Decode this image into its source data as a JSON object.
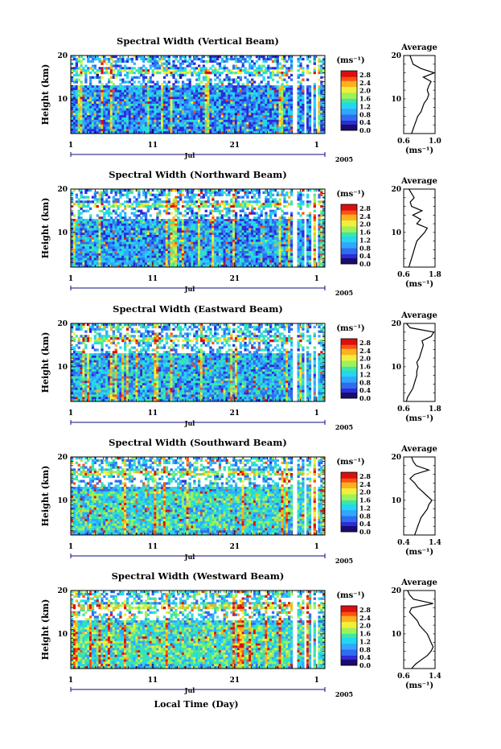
{
  "chart_data": {
    "type": "heatmap",
    "shared": {
      "x_tick_labels": [
        "1",
        "11",
        "21",
        "1"
      ],
      "x_tick_days": [
        1,
        11,
        21,
        31
      ],
      "x_range_days": [
        1,
        32
      ],
      "month_label": "Jul",
      "year_label": "2005",
      "xlabel": "Local Time (Day)",
      "ylabel": "Height (km)",
      "ylim": [
        2,
        20
      ],
      "y_tick_labels": [
        "10",
        "20"
      ],
      "y_ticks": [
        10,
        20
      ],
      "colorbar_unit": "(ms⁻¹)",
      "colorbar_ticks": [
        "0.0",
        "0.4",
        "0.8",
        "1.2",
        "1.6",
        "2.0",
        "2.4",
        "2.8"
      ],
      "colorbar_range": [
        0,
        3.0
      ],
      "colormap": [
        "#1a0a6e",
        "#2b2bd8",
        "#2f6cf0",
        "#33a6ff",
        "#22d8f0",
        "#3fe7a0",
        "#9cf25a",
        "#f0f03a",
        "#ffb020",
        "#ff5010",
        "#d81010"
      ],
      "profile_title": "Average",
      "profile_unit": "(ms⁻¹)",
      "data_gaps_days": [
        [
          28.0,
          28.7
        ],
        [
          29.55,
          29.8
        ],
        [
          30.35,
          30.55
        ],
        [
          30.9,
          31.1
        ]
      ]
    },
    "panels": [
      {
        "title": "Spectral Width (Vertical Beam)",
        "profile_xlim": [
          0.6,
          1.0
        ],
        "profile_tick_labels": [
          "0.6",
          "1.0"
        ],
        "profile_heights": [
          2,
          3,
          4,
          5,
          6,
          7,
          8,
          9,
          10,
          11,
          12,
          13,
          14,
          15,
          16,
          17,
          18,
          19,
          20
        ],
        "profile_values": [
          0.7,
          0.72,
          0.74,
          0.76,
          0.78,
          0.82,
          0.84,
          0.86,
          0.9,
          0.92,
          0.9,
          0.92,
          0.95,
          0.85,
          0.99,
          0.82,
          0.72,
          0.7,
          0.68
        ]
      },
      {
        "title": "Spectral Width (Northward Beam)",
        "profile_xlim": [
          0.6,
          1.8
        ],
        "profile_tick_labels": [
          "0.6",
          "1.8"
        ],
        "profile_heights": [
          2,
          3,
          4,
          5,
          6,
          7,
          8,
          9,
          10,
          11,
          12,
          13,
          14,
          15,
          16,
          17,
          18,
          19,
          20
        ],
        "profile_values": [
          0.8,
          0.85,
          0.9,
          0.95,
          1.0,
          1.05,
          1.1,
          1.25,
          1.4,
          1.5,
          1.1,
          1.25,
          0.95,
          1.3,
          0.9,
          0.85,
          1.0,
          0.9,
          0.8
        ]
      },
      {
        "title": "Spectral Width (Eastward Beam)",
        "profile_xlim": [
          0.6,
          1.8
        ],
        "profile_tick_labels": [
          "0.6",
          "1.8"
        ],
        "profile_heights": [
          2,
          3,
          4,
          5,
          6,
          7,
          8,
          9,
          10,
          11,
          12,
          13,
          14,
          15,
          16,
          17,
          18,
          19,
          20
        ],
        "profile_values": [
          0.7,
          0.75,
          0.85,
          0.95,
          1.0,
          1.05,
          1.1,
          1.1,
          1.15,
          1.1,
          1.2,
          1.25,
          1.3,
          1.35,
          1.3,
          1.65,
          1.75,
          0.85,
          0.7
        ]
      },
      {
        "title": "Spectral Width (Southward Beam)",
        "profile_xlim": [
          0.4,
          1.4
        ],
        "profile_tick_labels": [
          "0.4",
          "1.4"
        ],
        "profile_heights": [
          2,
          3,
          4,
          5,
          6,
          7,
          8,
          9,
          10,
          11,
          12,
          13,
          14,
          15,
          16,
          17,
          18,
          19,
          20
        ],
        "profile_values": [
          0.75,
          0.8,
          0.85,
          0.9,
          0.95,
          1.05,
          1.15,
          1.2,
          1.3,
          1.15,
          1.0,
          0.85,
          0.75,
          0.6,
          0.75,
          1.2,
          0.8,
          0.7,
          0.65
        ]
      },
      {
        "title": "Spectral Width (Westward Beam)",
        "profile_xlim": [
          0.6,
          1.4
        ],
        "profile_tick_labels": [
          "0.6",
          "1.4"
        ],
        "profile_heights": [
          2,
          3,
          4,
          5,
          6,
          7,
          8,
          9,
          10,
          11,
          12,
          13,
          14,
          15,
          16,
          17,
          18,
          19,
          20
        ],
        "profile_values": [
          0.8,
          0.9,
          1.05,
          1.2,
          1.3,
          1.35,
          1.3,
          1.25,
          1.2,
          1.1,
          1.0,
          0.95,
          0.85,
          0.75,
          0.8,
          1.35,
          0.85,
          0.75,
          0.7
        ]
      }
    ]
  }
}
